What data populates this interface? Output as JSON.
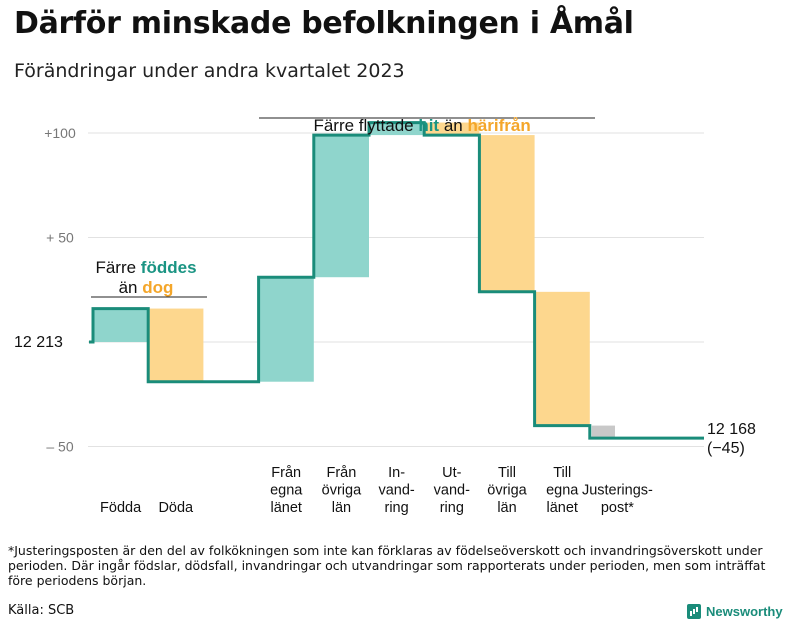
{
  "title": "Därför minskade befolkningen i Åmål",
  "subtitle": "Förändringar under andra kvartalet 2023",
  "footnote": "*Justeringsposten är den del av folkökningen som inte kan förklaras av födelseöverskott och invandringsöverskott under perioden. Där ingår födslar, dödsfall, invandringar och utvandringar som rapporterats under perioden, men som inträffat före periodens början.",
  "source": "Källa: SCB",
  "brand": "Newsworthy",
  "annotations": {
    "births_deaths": {
      "line1_prefix": "Färre ",
      "line1_highlight": "föddes",
      "line2_prefix": "än ",
      "line2_highlight": "dog"
    },
    "migration": {
      "prefix": "Färre flyttade ",
      "highlight1": "hit",
      "middle": " än ",
      "highlight2": "härifrån"
    }
  },
  "colors": {
    "increase": "#8fd5cc",
    "decrease": "#fdd78e",
    "adjustment": "#c8c8c8",
    "line": "#1a8c7a",
    "grid": "#e2e2e2",
    "accent_hit": "#1a9483",
    "accent_dog": "#f4a62a"
  },
  "chart_data": {
    "type": "waterfall",
    "title": "Därför minskade befolkningen i Åmål",
    "subtitle": "Förändringar under andra kvartalet 2023",
    "start_value": 12213,
    "start_label": "12  213",
    "end_value": 12168,
    "end_label": "12 168",
    "end_change_label": "(−45)",
    "y_unit": "change relative to start population",
    "ylim": [
      -60,
      115
    ],
    "y_ticks": [
      {
        "value": 100,
        "label": "+100"
      },
      {
        "value": 50,
        "label": "+  50"
      },
      {
        "value": -50,
        "label": "–  50"
      }
    ],
    "categories": [
      "Födda",
      "Döda",
      "Från egna länet",
      "Från övriga län",
      "In-vandring",
      "Ut-vandring",
      "Till övriga län",
      "Till egna länet",
      "Justerings-post*"
    ],
    "category_label_lines": [
      [
        "Födda"
      ],
      [
        "Döda"
      ],
      [
        "Från",
        "egna",
        "länet"
      ],
      [
        "Från",
        "övriga",
        "län"
      ],
      [
        "In-",
        "vand-",
        "ring"
      ],
      [
        "Ut-",
        "vand-",
        "ring"
      ],
      [
        "Till",
        "övriga",
        "län"
      ],
      [
        "Till",
        "egna",
        "länet"
      ],
      [
        "Justerings-",
        "post*"
      ]
    ],
    "values": [
      16,
      -35,
      50,
      68,
      6,
      -6,
      -75,
      -64,
      -6
    ],
    "kinds": [
      "increase",
      "decrease",
      "increase",
      "increase",
      "increase",
      "decrease",
      "decrease",
      "decrease",
      "adjustment"
    ]
  }
}
